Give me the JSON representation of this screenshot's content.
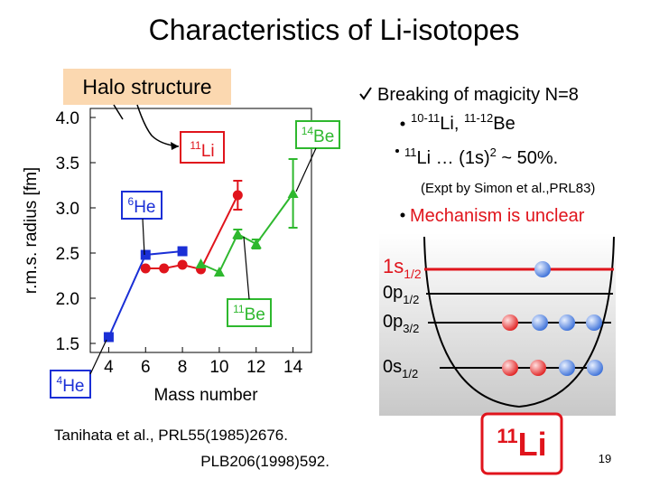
{
  "title": "Characteristics of Li-isotopes",
  "halo_label": "Halo structure",
  "chart_data": {
    "type": "line",
    "xlabel": "Mass number",
    "ylabel": "r.m.s. radius [fm]",
    "xlim": [
      3,
      15
    ],
    "xticks": [
      4,
      6,
      8,
      10,
      12,
      14
    ],
    "ylim": [
      1.4,
      4.1
    ],
    "yticks": [
      1.5,
      {
        "value": 2,
        "label": "2.0"
      },
      2.5,
      {
        "value": 3,
        "label": "3.0"
      },
      3.5,
      {
        "value": 4,
        "label": "4.0"
      }
    ],
    "grid": false,
    "series": [
      {
        "color": "#1a2fd6",
        "marker": "square",
        "x": [
          4,
          6,
          8
        ],
        "values": [
          1.57,
          2.48,
          2.52
        ],
        "errors": [
          null,
          null,
          null
        ]
      },
      {
        "color": "#e0141c",
        "marker": "circle",
        "x": [
          6,
          7,
          8,
          9,
          11
        ],
        "values": [
          2.33,
          2.33,
          2.37,
          2.32,
          3.14
        ],
        "errors": [
          null,
          null,
          null,
          null,
          0.16
        ]
      },
      {
        "color": "#2eb82e",
        "marker": "triangle",
        "x": [
          9,
          10,
          11,
          12,
          14
        ],
        "values": [
          2.38,
          2.29,
          2.71,
          2.6,
          3.16
        ],
        "errors": [
          null,
          null,
          0.05,
          0.05,
          0.38
        ]
      }
    ],
    "annotations": [
      {
        "mass": "4",
        "symbol": "He",
        "color": "#1a2fd6"
      },
      {
        "mass": "6",
        "symbol": "He",
        "color": "#1a2fd6"
      },
      {
        "mass": "11",
        "symbol": "Li",
        "color": "#e0141c"
      },
      {
        "mass": "14",
        "symbol": "Be",
        "color": "#2eb82e"
      },
      {
        "mass": "11",
        "symbol": "Be",
        "color": "#2eb82e"
      }
    ]
  },
  "right": {
    "heading": "Breaking of magicity N=8",
    "item1": [
      "10-11",
      "Li, ",
      "11-12",
      "Be"
    ],
    "item2": [
      "11",
      "Li  … (1s)",
      "2",
      " ~ 50%."
    ],
    "note": "(Expt by Simon et al.,PRL83)",
    "mechanism": "Mechanism is unclear"
  },
  "levels": [
    {
      "n": "1s",
      "j": "1/2"
    },
    {
      "n": "0p",
      "j": "1/2"
    },
    {
      "n": "0p",
      "j": "3/2"
    },
    {
      "n": "0s",
      "j": "1/2"
    }
  ],
  "nucleus": {
    "mass": "11",
    "symbol": "Li"
  },
  "references": [
    "Tanihata et al., PRL55(1985)2676.",
    "PLB206(1998)592."
  ],
  "page": "19"
}
